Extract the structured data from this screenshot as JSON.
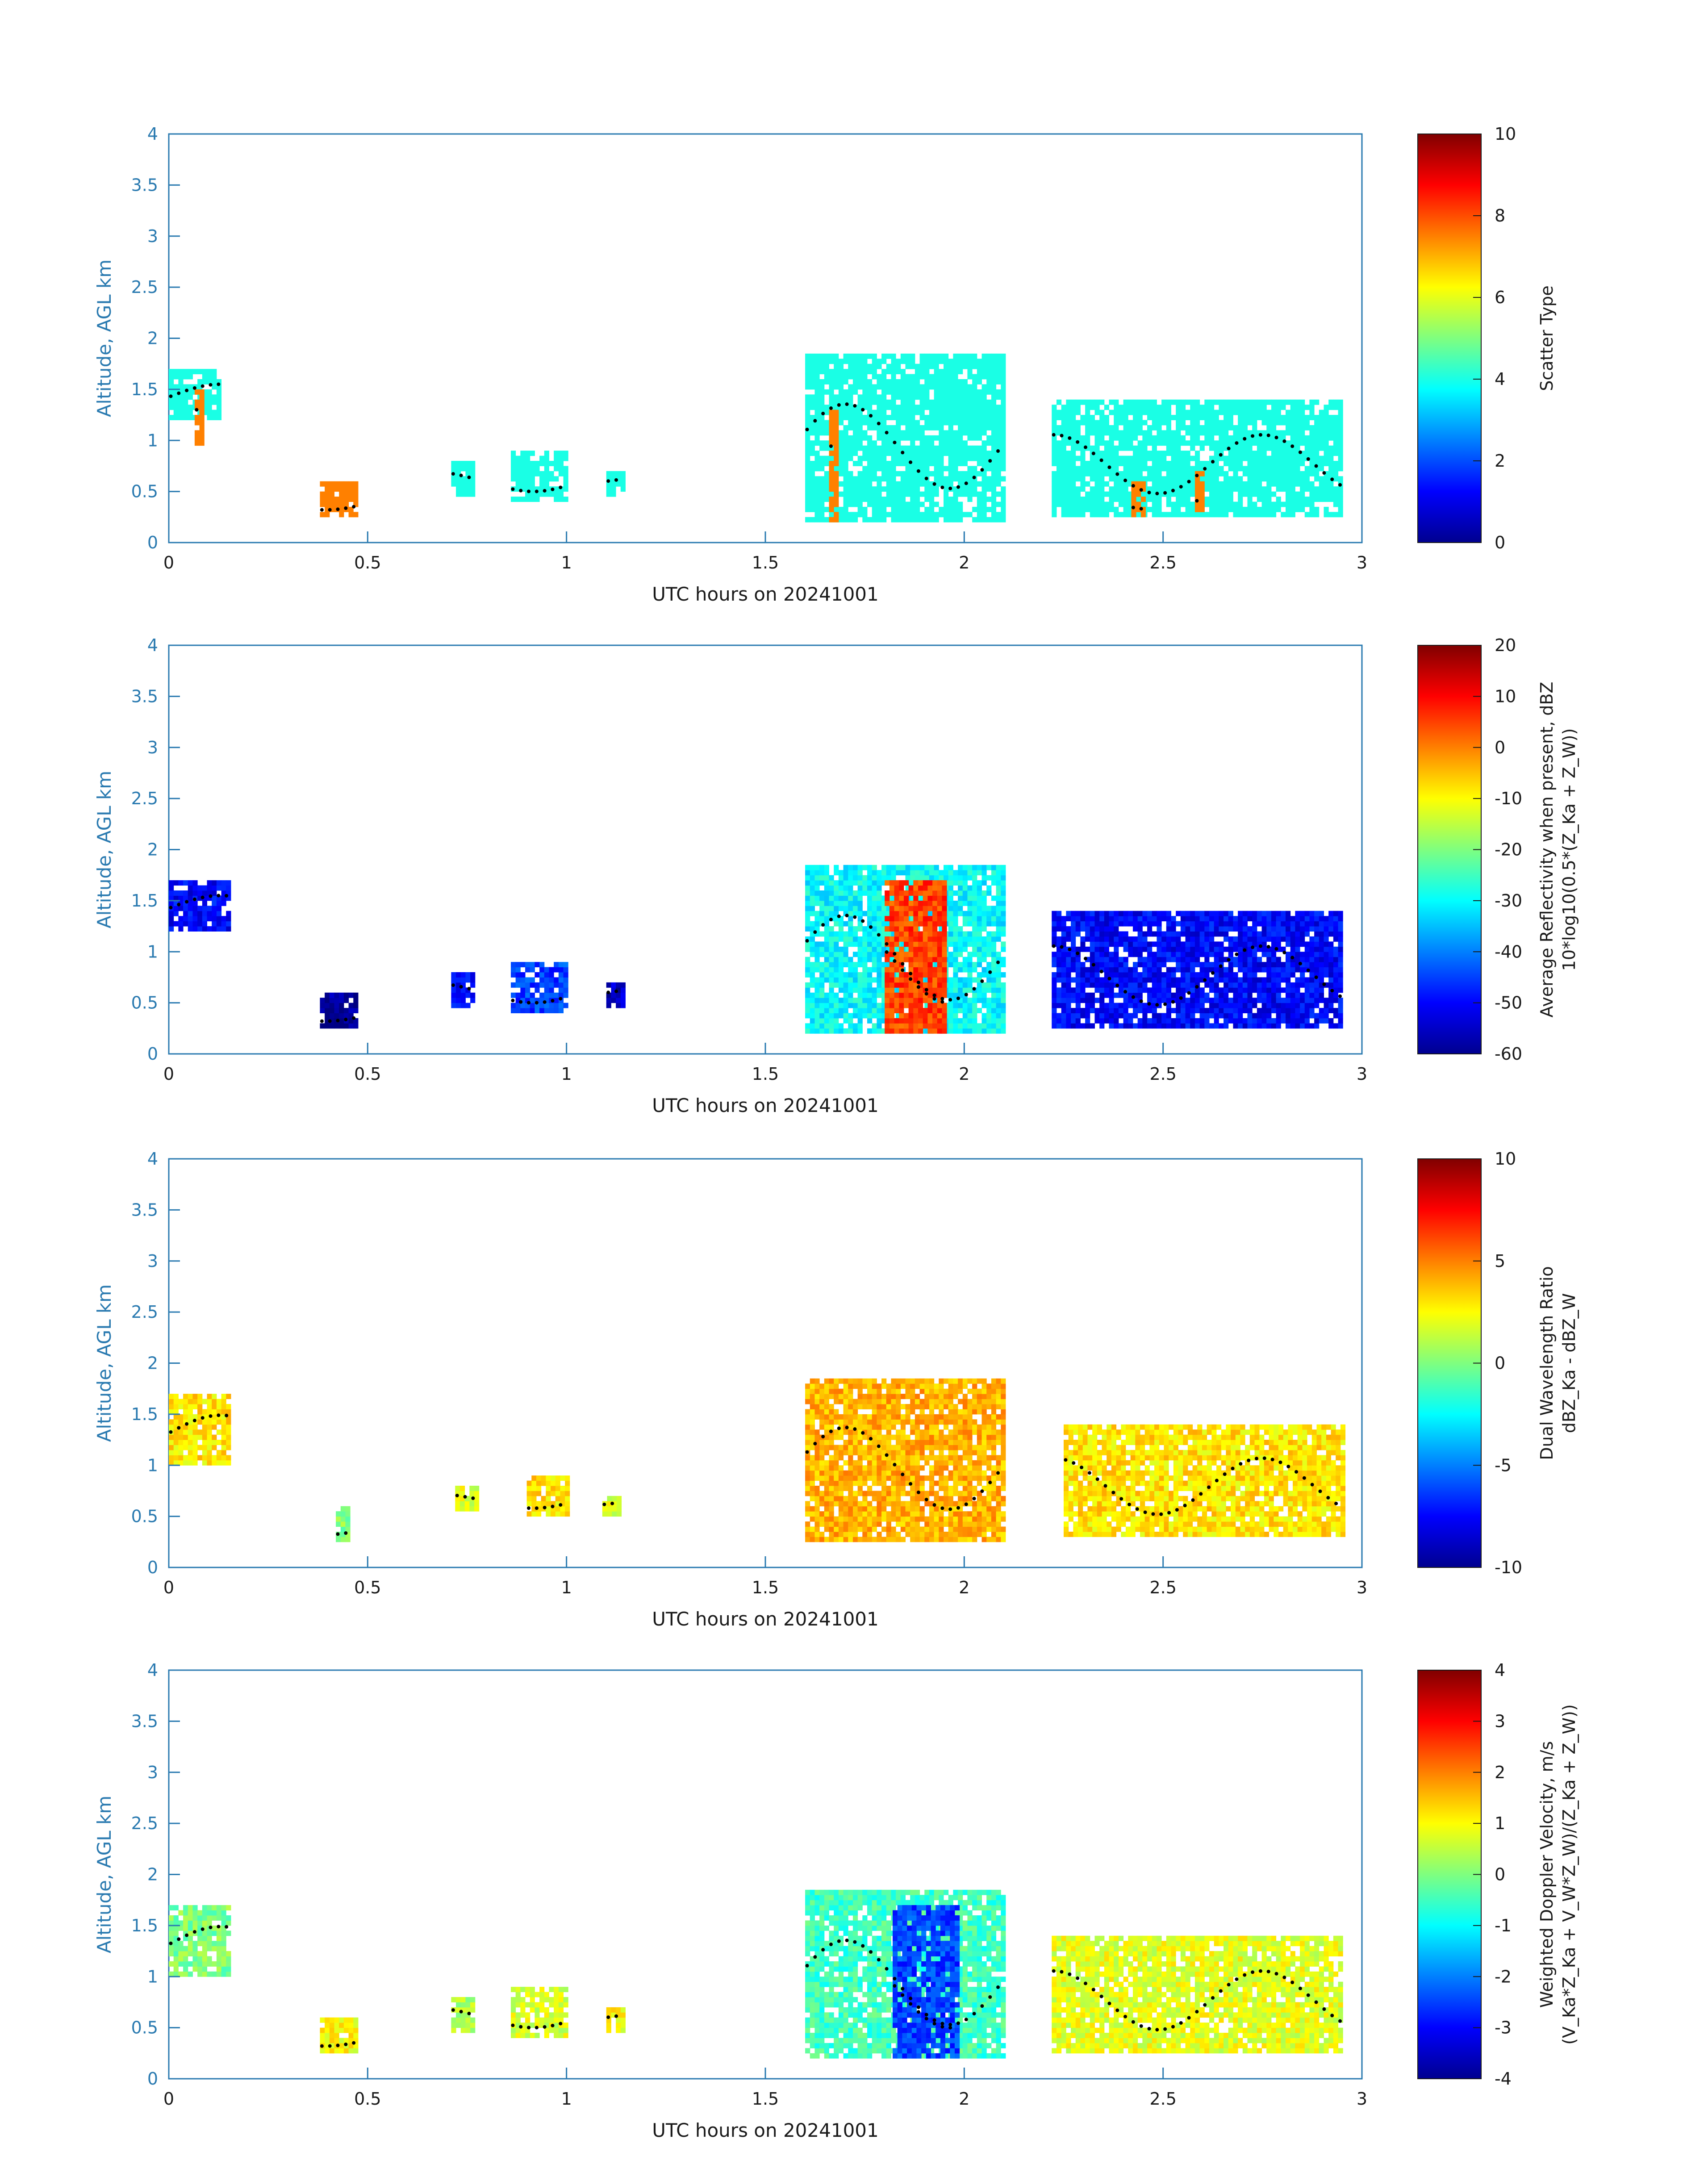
{
  "figure": {
    "panels": [
      {
        "id": "scatter-type",
        "xlabel": "UTC hours on 20241001",
        "ylabel": "Altitude, AGL km",
        "colorbar_label": "Scatter Type",
        "colorbar_sublabel": ""
      },
      {
        "id": "reflectivity",
        "xlabel": "UTC hours on 20241001",
        "ylabel": "Altitude, AGL km",
        "colorbar_label": "Average Reflectivity when present, dBZ",
        "colorbar_sublabel": "10*log10(0.5*(Z_Ka + Z_W))"
      },
      {
        "id": "dwr",
        "xlabel": "UTC hours on 20241001",
        "ylabel": "Altitude, AGL km",
        "colorbar_label": "Dual Wavelength Ratio",
        "colorbar_sublabel": "dBZ_Ka - dBZ_W"
      },
      {
        "id": "doppler",
        "xlabel": "UTC hours on 20241001",
        "ylabel": "Altitude, AGL km",
        "colorbar_label": "Weighted Doppler Velocity, m/s",
        "colorbar_sublabel": "(V_Ka*Z_Ka + V_W*Z_W)/(Z_Ka + Z_W))"
      }
    ]
  },
  "chart_data": [
    {
      "type": "heatmap",
      "xlabel": "UTC hours on 20241001",
      "ylabel": "Altitude, AGL km",
      "xlim": [
        0,
        3
      ],
      "ylim": [
        0,
        4
      ],
      "xticks": [
        "0",
        "0.5",
        "1",
        "1.5",
        "2",
        "2.5",
        "3"
      ],
      "yticks": [
        "0",
        "0.5",
        "1",
        "1.5",
        "2",
        "2.5",
        "3",
        "3.5",
        "4"
      ],
      "colorbar": {
        "label": "Scatter Type",
        "range": [
          0,
          10
        ],
        "ticks": [
          "0",
          "2",
          "4",
          "6",
          "8",
          "10"
        ],
        "colormap": "jet"
      },
      "cloud_regions": [
        {
          "t": [
            0.0,
            0.13
          ],
          "z": [
            1.2,
            1.7
          ],
          "value": 4
        },
        {
          "t": [
            0.065,
            0.085
          ],
          "z": [
            0.95,
            1.5
          ],
          "value": 7.5
        },
        {
          "t": [
            0.38,
            0.47
          ],
          "z": [
            0.25,
            0.6
          ],
          "value": 7.5
        },
        {
          "t": [
            0.71,
            0.77
          ],
          "z": [
            0.45,
            0.8
          ],
          "value": 4
        },
        {
          "t": [
            0.86,
            1.0
          ],
          "z": [
            0.4,
            0.9
          ],
          "value": 4
        },
        {
          "t": [
            1.1,
            1.14
          ],
          "z": [
            0.45,
            0.7
          ],
          "value": 4
        },
        {
          "t": [
            1.6,
            2.1
          ],
          "z": [
            0.2,
            1.85
          ],
          "value": 4
        },
        {
          "t": [
            1.66,
            1.68
          ],
          "z": [
            0.2,
            1.3
          ],
          "value": 7.5
        },
        {
          "t": [
            2.22,
            2.95
          ],
          "z": [
            0.25,
            1.4
          ],
          "value": 4
        },
        {
          "t": [
            2.42,
            2.45
          ],
          "z": [
            0.25,
            0.6
          ],
          "value": 7.5
        },
        {
          "t": [
            2.58,
            2.6
          ],
          "z": [
            0.25,
            0.7
          ],
          "value": 7.5
        }
      ]
    },
    {
      "type": "heatmap",
      "xlabel": "UTC hours on 20241001",
      "ylabel": "Altitude, AGL km",
      "xlim": [
        0,
        3
      ],
      "ylim": [
        0,
        4
      ],
      "xticks": [
        "0",
        "0.5",
        "1",
        "1.5",
        "2",
        "2.5",
        "3"
      ],
      "yticks": [
        "0",
        "0.5",
        "1",
        "1.5",
        "2",
        "2.5",
        "3",
        "3.5",
        "4"
      ],
      "colorbar": {
        "label": "Average Reflectivity when present, dBZ",
        "range": [
          -60,
          20
        ],
        "ticks": [
          "-60",
          "-50",
          "-40",
          "-30",
          "-20",
          "-10",
          "0",
          "10",
          "20"
        ],
        "colormap": "jet"
      },
      "cloud_regions": [
        {
          "t": [
            0.0,
            0.15
          ],
          "z": [
            1.2,
            1.7
          ],
          "value": -50
        },
        {
          "t": [
            0.38,
            0.47
          ],
          "z": [
            0.25,
            0.6
          ],
          "value": -58
        },
        {
          "t": [
            0.71,
            0.77
          ],
          "z": [
            0.45,
            0.8
          ],
          "value": -50
        },
        {
          "t": [
            0.86,
            1.0
          ],
          "z": [
            0.4,
            0.9
          ],
          "value": -45
        },
        {
          "t": [
            1.1,
            1.14
          ],
          "z": [
            0.45,
            0.7
          ],
          "value": -55
        },
        {
          "t": [
            1.6,
            2.1
          ],
          "z": [
            0.2,
            1.85
          ],
          "value": -30
        },
        {
          "t": [
            1.8,
            1.95
          ],
          "z": [
            0.2,
            1.7
          ],
          "value": 5
        },
        {
          "t": [
            2.22,
            2.95
          ],
          "z": [
            0.25,
            1.4
          ],
          "value": -50
        }
      ]
    },
    {
      "type": "heatmap",
      "xlabel": "UTC hours on 20241001",
      "ylabel": "Altitude, AGL km",
      "xlim": [
        0,
        3
      ],
      "ylim": [
        0,
        4
      ],
      "xticks": [
        "0",
        "0.5",
        "1",
        "1.5",
        "2",
        "2.5",
        "3"
      ],
      "yticks": [
        "0",
        "0.5",
        "1",
        "1.5",
        "2",
        "2.5",
        "3",
        "3.5",
        "4"
      ],
      "colorbar": {
        "label": "Dual Wavelength Ratio",
        "range": [
          -10,
          10
        ],
        "ticks": [
          "-10",
          "-5",
          "0",
          "5",
          "10"
        ],
        "colormap": "jet"
      },
      "cloud_regions": [
        {
          "t": [
            0.0,
            0.15
          ],
          "z": [
            1.0,
            1.7
          ],
          "value": 3
        },
        {
          "t": [
            0.42,
            0.45
          ],
          "z": [
            0.25,
            0.6
          ],
          "value": 0
        },
        {
          "t": [
            0.72,
            0.77
          ],
          "z": [
            0.55,
            0.8
          ],
          "value": 2
        },
        {
          "t": [
            0.9,
            1.0
          ],
          "z": [
            0.5,
            0.9
          ],
          "value": 3
        },
        {
          "t": [
            1.09,
            1.13
          ],
          "z": [
            0.5,
            0.7
          ],
          "value": 2
        },
        {
          "t": [
            1.6,
            2.1
          ],
          "z": [
            0.25,
            1.85
          ],
          "value": 4
        },
        {
          "t": [
            2.25,
            2.95
          ],
          "z": [
            0.3,
            1.4
          ],
          "value": 3
        }
      ]
    },
    {
      "type": "heatmap",
      "xlabel": "UTC hours on 20241001",
      "ylabel": "Altitude, AGL km",
      "xlim": [
        0,
        3
      ],
      "ylim": [
        0,
        4
      ],
      "xticks": [
        "0",
        "0.5",
        "1",
        "1.5",
        "2",
        "2.5",
        "3"
      ],
      "yticks": [
        "0",
        "0.5",
        "1",
        "1.5",
        "2",
        "2.5",
        "3",
        "3.5",
        "4"
      ],
      "colorbar": {
        "label": "Weighted Doppler Velocity, m/s",
        "range": [
          -4,
          4
        ],
        "ticks": [
          "-4",
          "-3",
          "-2",
          "-1",
          "0",
          "1",
          "2",
          "3",
          "4"
        ],
        "colormap": "jet"
      },
      "cloud_regions": [
        {
          "t": [
            0.0,
            0.15
          ],
          "z": [
            1.0,
            1.7
          ],
          "value": 0
        },
        {
          "t": [
            0.38,
            0.47
          ],
          "z": [
            0.25,
            0.6
          ],
          "value": 1
        },
        {
          "t": [
            0.71,
            0.77
          ],
          "z": [
            0.45,
            0.8
          ],
          "value": 0.3
        },
        {
          "t": [
            0.86,
            1.0
          ],
          "z": [
            0.4,
            0.9
          ],
          "value": 0.7
        },
        {
          "t": [
            1.1,
            1.14
          ],
          "z": [
            0.45,
            0.7
          ],
          "value": 1
        },
        {
          "t": [
            1.6,
            2.1
          ],
          "z": [
            0.2,
            1.85
          ],
          "value": -0.5
        },
        {
          "t": [
            1.82,
            1.98
          ],
          "z": [
            0.2,
            1.7
          ],
          "value": -2.5
        },
        {
          "t": [
            2.22,
            2.95
          ],
          "z": [
            0.25,
            1.4
          ],
          "value": 0.8
        }
      ]
    }
  ]
}
